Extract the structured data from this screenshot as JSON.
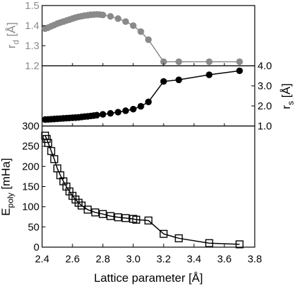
{
  "chart_data": [
    {
      "panel": "top",
      "type": "scatter",
      "ylabel_main": "r",
      "ylabel_sub": "d",
      "ylabel_unit": " [Å]",
      "label_color": "#8a8a8a",
      "series_color": "#8a8a8a",
      "xlim": [
        2.4,
        3.8
      ],
      "ylim": [
        1.2,
        1.5
      ],
      "yticks": [
        1.2,
        1.3,
        1.4,
        1.5
      ],
      "ytick_labels": [
        "1.2",
        "1.3",
        "1.4",
        "1.5"
      ],
      "marker": "filled-circle",
      "series": [
        {
          "x": [
            2.42,
            2.44,
            2.46,
            2.48,
            2.5,
            2.52,
            2.54,
            2.56,
            2.58,
            2.6,
            2.62,
            2.64,
            2.66,
            2.68,
            2.7,
            2.72,
            2.74,
            2.76,
            2.78,
            2.8,
            2.85,
            2.9,
            2.95,
            3.0,
            3.05,
            3.1,
            3.2,
            3.3,
            3.5,
            3.7
          ],
          "y": [
            1.385,
            1.39,
            1.397,
            1.403,
            1.41,
            1.415,
            1.42,
            1.425,
            1.43,
            1.435,
            1.44,
            1.444,
            1.447,
            1.45,
            1.452,
            1.454,
            1.455,
            1.456,
            1.455,
            1.453,
            1.446,
            1.435,
            1.42,
            1.4,
            1.37,
            1.33,
            1.22,
            1.22,
            1.22,
            1.22
          ]
        }
      ]
    },
    {
      "panel": "middle",
      "type": "scatter",
      "ylabel_main": "r",
      "ylabel_sub": "s",
      "ylabel_unit": " [Å]",
      "ylabel_side": "right",
      "label_color": "#000000",
      "series_color": "#000000",
      "xlim": [
        2.4,
        3.8
      ],
      "ylim": [
        1.0,
        4.0
      ],
      "yticks": [
        1.0,
        2.0,
        3.0,
        4.0
      ],
      "ytick_labels": [
        "1.0",
        "2.0",
        "3.0",
        "4.0"
      ],
      "marker": "filled-circle",
      "series": [
        {
          "x": [
            2.42,
            2.44,
            2.46,
            2.48,
            2.5,
            2.52,
            2.54,
            2.56,
            2.58,
            2.6,
            2.62,
            2.64,
            2.66,
            2.68,
            2.7,
            2.72,
            2.74,
            2.76,
            2.8,
            2.85,
            2.9,
            2.95,
            3.0,
            3.05,
            3.1,
            3.2,
            3.3,
            3.5,
            3.7
          ],
          "y": [
            1.32,
            1.33,
            1.34,
            1.35,
            1.36,
            1.37,
            1.38,
            1.39,
            1.4,
            1.41,
            1.42,
            1.43,
            1.45,
            1.47,
            1.48,
            1.5,
            1.52,
            1.54,
            1.58,
            1.63,
            1.69,
            1.76,
            1.84,
            1.98,
            2.2,
            3.22,
            3.3,
            3.55,
            3.75
          ]
        }
      ]
    },
    {
      "panel": "bottom",
      "type": "scatter",
      "ylabel_main": "E",
      "ylabel_sub": "poly",
      "ylabel_unit": " [mHa]",
      "xlabel": "Lattice parameter [Å]",
      "label_color": "#000000",
      "series_color": "#000000",
      "xlim": [
        2.4,
        3.8
      ],
      "xticks": [
        2.4,
        2.6,
        2.8,
        3.0,
        3.2,
        3.4,
        3.6,
        3.8
      ],
      "xtick_labels": [
        "2.4",
        "2.6",
        "2.8",
        "3.0",
        "3.2",
        "3.4",
        "3.6",
        "3.8"
      ],
      "ylim": [
        0,
        300
      ],
      "yticks": [
        0,
        50,
        100,
        150,
        200,
        250,
        300
      ],
      "ytick_labels": [
        "0",
        "50",
        "100",
        "150",
        "200",
        "250",
        "300"
      ],
      "marker": "open-square",
      "series": [
        {
          "x": [
            2.42,
            2.43,
            2.44,
            2.46,
            2.48,
            2.5,
            2.52,
            2.54,
            2.56,
            2.58,
            2.6,
            2.62,
            2.64,
            2.66,
            2.7,
            2.75,
            2.8,
            2.85,
            2.9,
            2.95,
            3.0,
            3.02,
            3.1,
            3.2,
            3.3,
            3.5,
            3.7
          ],
          "y": [
            276,
            268,
            258,
            238,
            218,
            195,
            178,
            163,
            150,
            138,
            127,
            118,
            110,
            103,
            93,
            86,
            82,
            77,
            74,
            72,
            70,
            68,
            66,
            33,
            22,
            10,
            7
          ]
        }
      ]
    }
  ]
}
